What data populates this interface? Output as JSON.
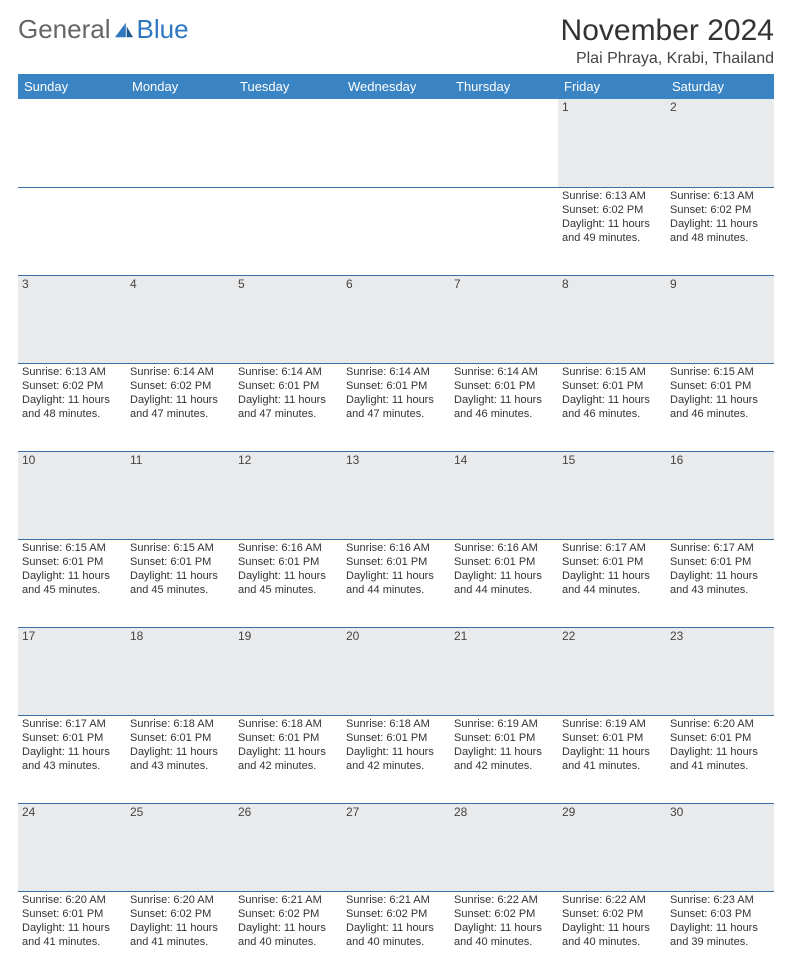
{
  "brand": {
    "part1": "General",
    "part2": "Blue"
  },
  "title": "November 2024",
  "location": "Plai Phraya, Krabi, Thailand",
  "colors": {
    "header_bg": "#3b84c4",
    "header_fg": "#ffffff",
    "daynum_bg": "#e9eaec",
    "rule": "#3b6ea0",
    "text": "#333333",
    "brand_accent": "#2f78c0"
  },
  "daysOfWeek": [
    "Sunday",
    "Monday",
    "Tuesday",
    "Wednesday",
    "Thursday",
    "Friday",
    "Saturday"
  ],
  "weeks": [
    [
      null,
      null,
      null,
      null,
      null,
      {
        "n": "1",
        "sr": "6:13 AM",
        "ss": "6:02 PM",
        "dl": "11 hours and 49 minutes."
      },
      {
        "n": "2",
        "sr": "6:13 AM",
        "ss": "6:02 PM",
        "dl": "11 hours and 48 minutes."
      }
    ],
    [
      {
        "n": "3",
        "sr": "6:13 AM",
        "ss": "6:02 PM",
        "dl": "11 hours and 48 minutes."
      },
      {
        "n": "4",
        "sr": "6:14 AM",
        "ss": "6:02 PM",
        "dl": "11 hours and 47 minutes."
      },
      {
        "n": "5",
        "sr": "6:14 AM",
        "ss": "6:01 PM",
        "dl": "11 hours and 47 minutes."
      },
      {
        "n": "6",
        "sr": "6:14 AM",
        "ss": "6:01 PM",
        "dl": "11 hours and 47 minutes."
      },
      {
        "n": "7",
        "sr": "6:14 AM",
        "ss": "6:01 PM",
        "dl": "11 hours and 46 minutes."
      },
      {
        "n": "8",
        "sr": "6:15 AM",
        "ss": "6:01 PM",
        "dl": "11 hours and 46 minutes."
      },
      {
        "n": "9",
        "sr": "6:15 AM",
        "ss": "6:01 PM",
        "dl": "11 hours and 46 minutes."
      }
    ],
    [
      {
        "n": "10",
        "sr": "6:15 AM",
        "ss": "6:01 PM",
        "dl": "11 hours and 45 minutes."
      },
      {
        "n": "11",
        "sr": "6:15 AM",
        "ss": "6:01 PM",
        "dl": "11 hours and 45 minutes."
      },
      {
        "n": "12",
        "sr": "6:16 AM",
        "ss": "6:01 PM",
        "dl": "11 hours and 45 minutes."
      },
      {
        "n": "13",
        "sr": "6:16 AM",
        "ss": "6:01 PM",
        "dl": "11 hours and 44 minutes."
      },
      {
        "n": "14",
        "sr": "6:16 AM",
        "ss": "6:01 PM",
        "dl": "11 hours and 44 minutes."
      },
      {
        "n": "15",
        "sr": "6:17 AM",
        "ss": "6:01 PM",
        "dl": "11 hours and 44 minutes."
      },
      {
        "n": "16",
        "sr": "6:17 AM",
        "ss": "6:01 PM",
        "dl": "11 hours and 43 minutes."
      }
    ],
    [
      {
        "n": "17",
        "sr": "6:17 AM",
        "ss": "6:01 PM",
        "dl": "11 hours and 43 minutes."
      },
      {
        "n": "18",
        "sr": "6:18 AM",
        "ss": "6:01 PM",
        "dl": "11 hours and 43 minutes."
      },
      {
        "n": "19",
        "sr": "6:18 AM",
        "ss": "6:01 PM",
        "dl": "11 hours and 42 minutes."
      },
      {
        "n": "20",
        "sr": "6:18 AM",
        "ss": "6:01 PM",
        "dl": "11 hours and 42 minutes."
      },
      {
        "n": "21",
        "sr": "6:19 AM",
        "ss": "6:01 PM",
        "dl": "11 hours and 42 minutes."
      },
      {
        "n": "22",
        "sr": "6:19 AM",
        "ss": "6:01 PM",
        "dl": "11 hours and 41 minutes."
      },
      {
        "n": "23",
        "sr": "6:20 AM",
        "ss": "6:01 PM",
        "dl": "11 hours and 41 minutes."
      }
    ],
    [
      {
        "n": "24",
        "sr": "6:20 AM",
        "ss": "6:01 PM",
        "dl": "11 hours and 41 minutes."
      },
      {
        "n": "25",
        "sr": "6:20 AM",
        "ss": "6:02 PM",
        "dl": "11 hours and 41 minutes."
      },
      {
        "n": "26",
        "sr": "6:21 AM",
        "ss": "6:02 PM",
        "dl": "11 hours and 40 minutes."
      },
      {
        "n": "27",
        "sr": "6:21 AM",
        "ss": "6:02 PM",
        "dl": "11 hours and 40 minutes."
      },
      {
        "n": "28",
        "sr": "6:22 AM",
        "ss": "6:02 PM",
        "dl": "11 hours and 40 minutes."
      },
      {
        "n": "29",
        "sr": "6:22 AM",
        "ss": "6:02 PM",
        "dl": "11 hours and 40 minutes."
      },
      {
        "n": "30",
        "sr": "6:23 AM",
        "ss": "6:03 PM",
        "dl": "11 hours and 39 minutes."
      }
    ]
  ],
  "labels": {
    "sunrise": "Sunrise:",
    "sunset": "Sunset:",
    "daylight": "Daylight:"
  }
}
